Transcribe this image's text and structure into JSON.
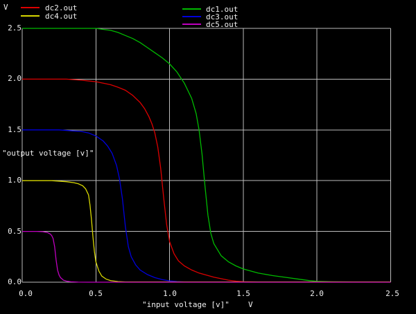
{
  "window": {
    "bg": "#000000",
    "text_color": "#f2f2f2",
    "grid_color": "#bdbdbd"
  },
  "legend": {
    "left": [
      {
        "label": "dc2.out",
        "color": "#dd0000"
      },
      {
        "label": "dc4.out",
        "color": "#d8d800"
      }
    ],
    "right": [
      {
        "label": "dc1.out",
        "color": "#00bb00"
      },
      {
        "label": "dc3.out",
        "color": "#0000dd"
      },
      {
        "label": "dc5.out",
        "color": "#c000c0"
      }
    ]
  },
  "chart_data": {
    "type": "line",
    "title": "",
    "xlabel": "\"input voltage [v]\"",
    "x_unit": "V",
    "ylabel": "\"output voltage [v]\"",
    "y_unit": "V",
    "xlim": [
      0,
      2.5
    ],
    "ylim": [
      0,
      2.5
    ],
    "grid": true,
    "legend_position": "top",
    "x_tick_labels": [
      "0.0",
      "0.5",
      "1.0",
      "1.5",
      "2.0",
      "2.5"
    ],
    "y_tick_labels": [
      "0.0",
      "0.5",
      "1.0",
      "1.5",
      "2.0",
      "2.5"
    ],
    "series": [
      {
        "name": "dc1.out",
        "color": "#00bb00",
        "vdd": 2.5,
        "points": [
          [
            0,
            2.5
          ],
          [
            0.3,
            2.5
          ],
          [
            0.5,
            2.5
          ],
          [
            0.55,
            2.49
          ],
          [
            0.6,
            2.48
          ],
          [
            0.65,
            2.46
          ],
          [
            0.7,
            2.43
          ],
          [
            0.75,
            2.4
          ],
          [
            0.8,
            2.36
          ],
          [
            0.85,
            2.31
          ],
          [
            0.9,
            2.26
          ],
          [
            0.95,
            2.21
          ],
          [
            1.0,
            2.15
          ],
          [
            1.05,
            2.07
          ],
          [
            1.1,
            1.96
          ],
          [
            1.15,
            1.81
          ],
          [
            1.18,
            1.66
          ],
          [
            1.2,
            1.5
          ],
          [
            1.22,
            1.26
          ],
          [
            1.24,
            0.95
          ],
          [
            1.26,
            0.66
          ],
          [
            1.28,
            0.48
          ],
          [
            1.3,
            0.38
          ],
          [
            1.35,
            0.26
          ],
          [
            1.4,
            0.2
          ],
          [
            1.45,
            0.16
          ],
          [
            1.5,
            0.13
          ],
          [
            1.6,
            0.09
          ],
          [
            1.7,
            0.065
          ],
          [
            1.8,
            0.045
          ],
          [
            1.9,
            0.025
          ],
          [
            1.95,
            0.015
          ],
          [
            2.0,
            0.008
          ],
          [
            2.1,
            0.004
          ],
          [
            2.3,
            0.002
          ],
          [
            2.5,
            0.002
          ]
        ]
      },
      {
        "name": "dc2.out",
        "color": "#dd0000",
        "vdd": 2.0,
        "points": [
          [
            0,
            2.0
          ],
          [
            0.3,
            2.0
          ],
          [
            0.4,
            1.99
          ],
          [
            0.5,
            1.975
          ],
          [
            0.55,
            1.96
          ],
          [
            0.6,
            1.945
          ],
          [
            0.65,
            1.92
          ],
          [
            0.7,
            1.89
          ],
          [
            0.75,
            1.84
          ],
          [
            0.8,
            1.77
          ],
          [
            0.83,
            1.71
          ],
          [
            0.86,
            1.63
          ],
          [
            0.88,
            1.56
          ],
          [
            0.9,
            1.47
          ],
          [
            0.92,
            1.33
          ],
          [
            0.94,
            1.12
          ],
          [
            0.96,
            0.83
          ],
          [
            0.98,
            0.57
          ],
          [
            1.0,
            0.4
          ],
          [
            1.03,
            0.28
          ],
          [
            1.06,
            0.21
          ],
          [
            1.1,
            0.16
          ],
          [
            1.15,
            0.12
          ],
          [
            1.2,
            0.09
          ],
          [
            1.3,
            0.05
          ],
          [
            1.4,
            0.02
          ],
          [
            1.45,
            0.01
          ],
          [
            1.5,
            0.005
          ],
          [
            1.6,
            0.002
          ],
          [
            2.5,
            0.002
          ]
        ]
      },
      {
        "name": "dc3.out",
        "color": "#0000dd",
        "vdd": 1.5,
        "points": [
          [
            0,
            1.5
          ],
          [
            0.25,
            1.5
          ],
          [
            0.35,
            1.49
          ],
          [
            0.4,
            1.485
          ],
          [
            0.45,
            1.47
          ],
          [
            0.5,
            1.44
          ],
          [
            0.55,
            1.39
          ],
          [
            0.58,
            1.34
          ],
          [
            0.61,
            1.27
          ],
          [
            0.64,
            1.15
          ],
          [
            0.66,
            1.02
          ],
          [
            0.68,
            0.82
          ],
          [
            0.7,
            0.55
          ],
          [
            0.72,
            0.35
          ],
          [
            0.74,
            0.25
          ],
          [
            0.77,
            0.17
          ],
          [
            0.8,
            0.12
          ],
          [
            0.85,
            0.075
          ],
          [
            0.9,
            0.045
          ],
          [
            0.95,
            0.025
          ],
          [
            1.0,
            0.012
          ],
          [
            1.05,
            0.006
          ],
          [
            1.1,
            0.003
          ],
          [
            2.5,
            0.002
          ]
        ]
      },
      {
        "name": "dc4.out",
        "color": "#d8d800",
        "vdd": 1.0,
        "points": [
          [
            0,
            1.0
          ],
          [
            0.2,
            1.0
          ],
          [
            0.3,
            0.99
          ],
          [
            0.35,
            0.98
          ],
          [
            0.38,
            0.97
          ],
          [
            0.41,
            0.95
          ],
          [
            0.43,
            0.92
          ],
          [
            0.45,
            0.86
          ],
          [
            0.46,
            0.76
          ],
          [
            0.47,
            0.62
          ],
          [
            0.48,
            0.45
          ],
          [
            0.49,
            0.3
          ],
          [
            0.5,
            0.2
          ],
          [
            0.52,
            0.11
          ],
          [
            0.54,
            0.06
          ],
          [
            0.57,
            0.03
          ],
          [
            0.6,
            0.015
          ],
          [
            0.65,
            0.006
          ],
          [
            0.7,
            0.003
          ],
          [
            2.5,
            0.002
          ]
        ]
      },
      {
        "name": "dc5.out",
        "color": "#c000c0",
        "vdd": 0.5,
        "points": [
          [
            0,
            0.5
          ],
          [
            0.1,
            0.5
          ],
          [
            0.14,
            0.497
          ],
          [
            0.17,
            0.49
          ],
          [
            0.19,
            0.475
          ],
          [
            0.2,
            0.46
          ],
          [
            0.21,
            0.43
          ],
          [
            0.22,
            0.35
          ],
          [
            0.23,
            0.22
          ],
          [
            0.24,
            0.12
          ],
          [
            0.25,
            0.07
          ],
          [
            0.26,
            0.045
          ],
          [
            0.28,
            0.02
          ],
          [
            0.3,
            0.01
          ],
          [
            0.33,
            0.004
          ],
          [
            0.38,
            0.001
          ],
          [
            0.45,
            0
          ],
          [
            2.5,
            0
          ]
        ]
      }
    ]
  }
}
